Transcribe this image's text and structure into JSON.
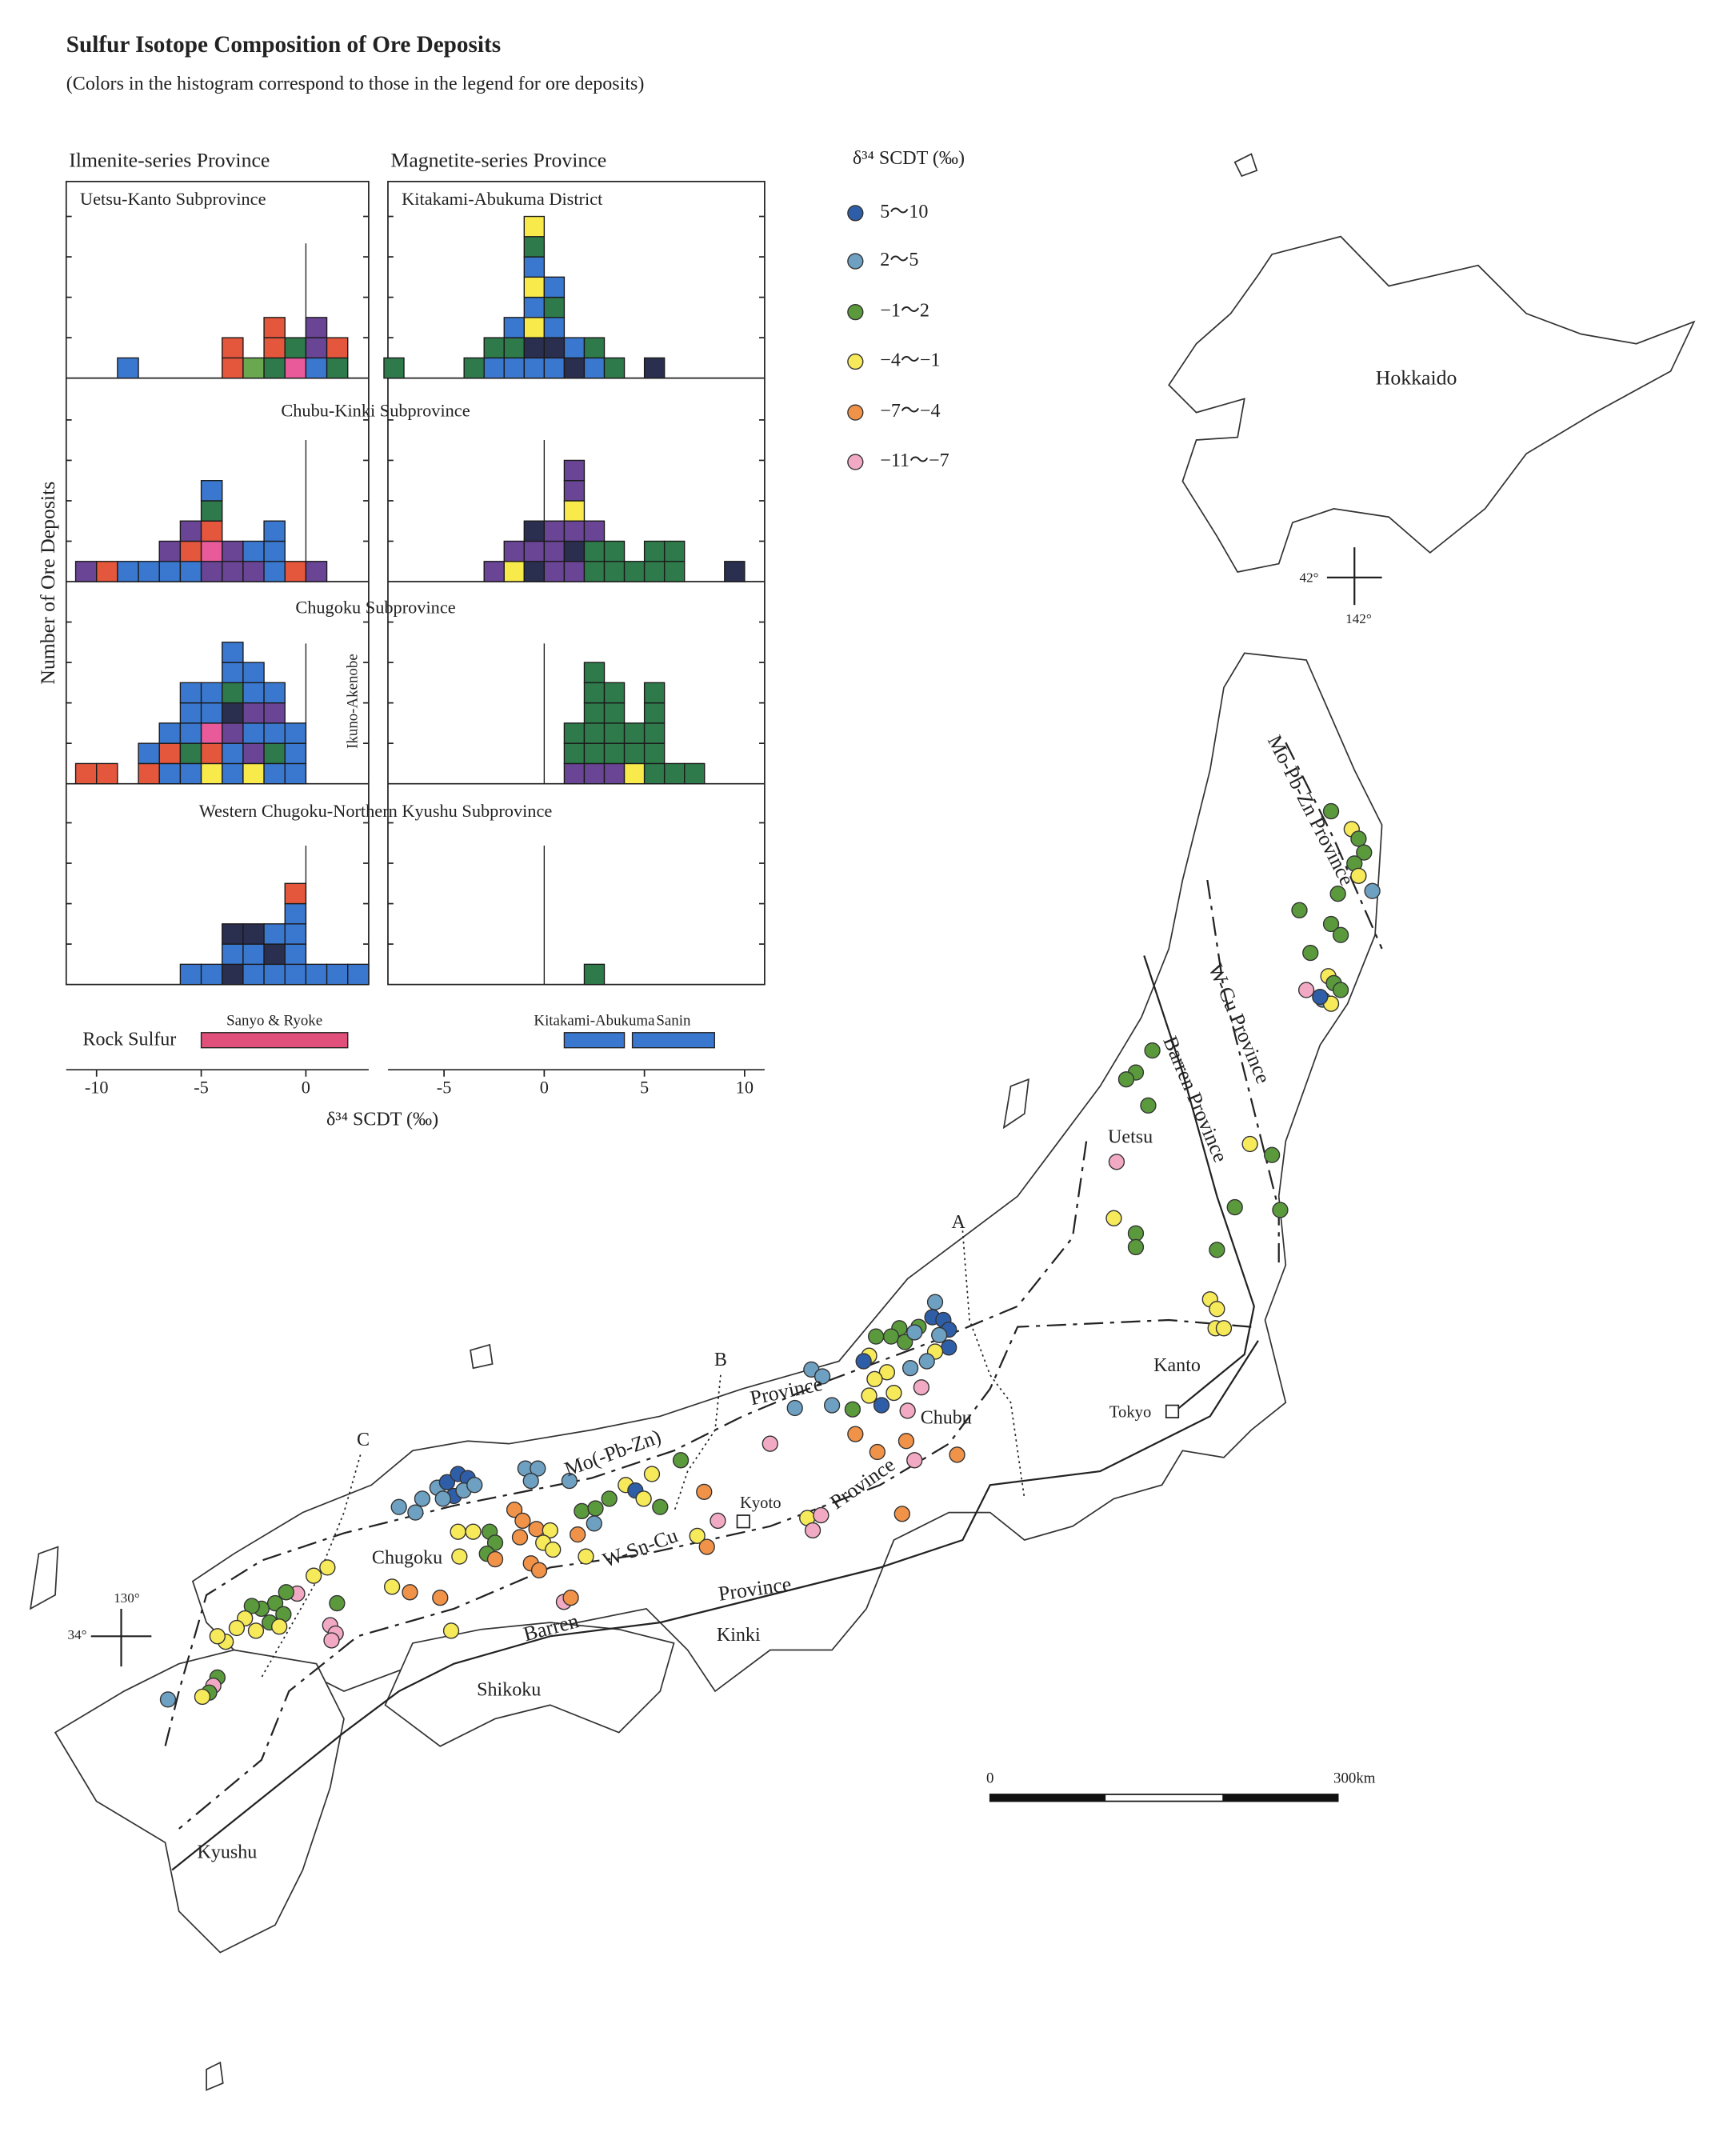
{
  "title": "Sulfur Isotope Composition of Ore Deposits",
  "subtitle": "(Colors in the histogram correspond to those in the legend for ore deposits)",
  "legend": {
    "title": "δ³⁴ SCDT (‰)",
    "items": [
      {
        "label": "5～10",
        "color": "#2f5ea8"
      },
      {
        "label": "2～5",
        "color": "#6ea0c2"
      },
      {
        "label": "−1～2",
        "color": "#5a9a3c"
      },
      {
        "label": "−4～−1",
        "color": "#f6e95a"
      },
      {
        "label": "−7～−4",
        "color": "#f09248"
      },
      {
        "label": "−11～−7",
        "color": "#f2a9c4"
      }
    ]
  },
  "histogram": {
    "type": "histogram",
    "y_axis_label": "Number of Ore Deposits",
    "x_axis_label": "δ³⁴ SCDT (‰)",
    "ylim": [
      0,
      10
    ],
    "yticks": [
      2,
      4,
      6,
      8
    ],
    "palette": {
      "red": "#e4573d",
      "green": "#2e7a4a",
      "lightgreen": "#6aa84f",
      "blue": "#3a78d0",
      "navy": "#2b2f4f",
      "purple": "#6a4495",
      "yellow": "#f7ea4a",
      "pink": "#e85a9a"
    },
    "row_titles": [
      [
        "Uetsu-Kanto Subprovince",
        "Kitakami-Abukuma District"
      ],
      [
        "Chubu-Kinki Subprovince"
      ],
      [
        "Chugoku Subprovince"
      ],
      [
        "Western Chugoku-Northern Kyushu Subprovince"
      ]
    ],
    "annotation": "Ikuno-Akenobe",
    "rock_sulfur_label": "Rock Sulfur",
    "provinces": [
      {
        "name": "Ilmenite-series Province",
        "xlim": [
          -11.45,
          3
        ],
        "xticks": [
          -10,
          -5,
          0
        ],
        "rock_sulfur": [
          {
            "name": "Sanyo & Ryoke",
            "range": [
              -5,
              2
            ],
            "color": "#e0507a"
          }
        ],
        "panels": [
          [
            {
              "bin": -9,
              "stack": [
                "blue"
              ]
            },
            {
              "bin": -4,
              "stack": [
                "red",
                "red"
              ]
            },
            {
              "bin": -3,
              "stack": [
                "lightgreen"
              ]
            },
            {
              "bin": -2,
              "stack": [
                "green",
                "red",
                "red"
              ]
            },
            {
              "bin": -1,
              "stack": [
                "pink",
                "green"
              ]
            },
            {
              "bin": 0,
              "stack": [
                "blue",
                "purple",
                "purple"
              ]
            },
            {
              "bin": 1,
              "stack": [
                "green",
                "red"
              ]
            }
          ],
          [
            {
              "bin": -11,
              "stack": [
                "purple"
              ]
            },
            {
              "bin": -10,
              "stack": [
                "red"
              ]
            },
            {
              "bin": -9,
              "stack": [
                "blue"
              ]
            },
            {
              "bin": -8,
              "stack": [
                "blue"
              ]
            },
            {
              "bin": -7,
              "stack": [
                "blue",
                "purple"
              ]
            },
            {
              "bin": -6,
              "stack": [
                "blue",
                "red",
                "purple"
              ]
            },
            {
              "bin": -5,
              "stack": [
                "purple",
                "pink",
                "red",
                "green",
                "blue"
              ]
            },
            {
              "bin": -4,
              "stack": [
                "purple",
                "purple"
              ]
            },
            {
              "bin": -3,
              "stack": [
                "purple",
                "blue"
              ]
            },
            {
              "bin": -2,
              "stack": [
                "blue",
                "blue",
                "blue"
              ]
            },
            {
              "bin": -1,
              "stack": [
                "red"
              ]
            },
            {
              "bin": 0,
              "stack": [
                "purple"
              ]
            }
          ],
          [
            {
              "bin": -11,
              "stack": [
                "red"
              ]
            },
            {
              "bin": -10,
              "stack": [
                "red"
              ]
            },
            {
              "bin": -8,
              "stack": [
                "red",
                "blue"
              ]
            },
            {
              "bin": -7,
              "stack": [
                "blue",
                "red",
                "blue"
              ]
            },
            {
              "bin": -6,
              "stack": [
                "blue",
                "green",
                "blue",
                "blue",
                "blue"
              ]
            },
            {
              "bin": -5,
              "stack": [
                "yellow",
                "red",
                "pink",
                "blue",
                "blue"
              ]
            },
            {
              "bin": -4,
              "stack": [
                "blue",
                "blue",
                "purple",
                "navy",
                "green",
                "blue",
                "blue"
              ]
            },
            {
              "bin": -3,
              "stack": [
                "yellow",
                "purple",
                "blue",
                "purple",
                "blue",
                "blue"
              ]
            },
            {
              "bin": -2,
              "stack": [
                "blue",
                "green",
                "blue",
                "purple",
                "blue"
              ]
            },
            {
              "bin": -1,
              "stack": [
                "blue",
                "blue",
                "blue"
              ]
            }
          ],
          [
            {
              "bin": -6,
              "stack": [
                "blue"
              ]
            },
            {
              "bin": -5,
              "stack": [
                "blue"
              ]
            },
            {
              "bin": -4,
              "stack": [
                "navy",
                "blue",
                "navy"
              ]
            },
            {
              "bin": -3,
              "stack": [
                "blue",
                "blue",
                "navy"
              ]
            },
            {
              "bin": -2,
              "stack": [
                "blue",
                "navy",
                "blue"
              ]
            },
            {
              "bin": -1,
              "stack": [
                "blue",
                "blue",
                "blue",
                "blue",
                "red"
              ]
            },
            {
              "bin": 0,
              "stack": [
                "blue"
              ]
            },
            {
              "bin": 1,
              "stack": [
                "blue"
              ]
            },
            {
              "bin": 2,
              "stack": [
                "blue"
              ]
            }
          ]
        ]
      },
      {
        "name": "Magnetite-series Province",
        "xlim": [
          -7.8,
          11
        ],
        "xticks": [
          -5,
          0,
          5,
          10
        ],
        "rock_sulfur": [
          {
            "name": "Kitakami-Abukuma",
            "range": [
              1,
              4
            ],
            "color": "#3a78d0"
          },
          {
            "name": "Sanin",
            "range": [
              4.4,
              8.5
            ],
            "color": "#3a78d0"
          }
        ],
        "panels": [
          [
            {
              "bin": -8,
              "stack": [
                "green"
              ]
            },
            {
              "bin": -4,
              "stack": [
                "green"
              ]
            },
            {
              "bin": -3,
              "stack": [
                "blue",
                "green"
              ]
            },
            {
              "bin": -2,
              "stack": [
                "blue",
                "green",
                "blue"
              ]
            },
            {
              "bin": -1,
              "stack": [
                "blue",
                "navy",
                "yellow",
                "blue",
                "yellow",
                "blue",
                "green",
                "yellow"
              ]
            },
            {
              "bin": 0,
              "stack": [
                "blue",
                "navy",
                "blue",
                "green",
                "blue"
              ]
            },
            {
              "bin": 1,
              "stack": [
                "navy",
                "blue"
              ]
            },
            {
              "bin": 2,
              "stack": [
                "blue",
                "green"
              ]
            },
            {
              "bin": 3,
              "stack": [
                "green"
              ]
            },
            {
              "bin": 5,
              "stack": [
                "navy"
              ]
            }
          ],
          [
            {
              "bin": -3,
              "stack": [
                "purple"
              ]
            },
            {
              "bin": -2,
              "stack": [
                "yellow",
                "purple"
              ]
            },
            {
              "bin": -1,
              "stack": [
                "navy",
                "purple",
                "navy"
              ]
            },
            {
              "bin": 0,
              "stack": [
                "purple",
                "purple",
                "purple"
              ]
            },
            {
              "bin": 1,
              "stack": [
                "purple",
                "navy",
                "purple",
                "yellow",
                "purple",
                "purple"
              ]
            },
            {
              "bin": 2,
              "stack": [
                "green",
                "green",
                "purple"
              ]
            },
            {
              "bin": 3,
              "stack": [
                "green",
                "green"
              ]
            },
            {
              "bin": 4,
              "stack": [
                "green"
              ]
            },
            {
              "bin": 5,
              "stack": [
                "green",
                "green"
              ]
            },
            {
              "bin": 6,
              "stack": [
                "green",
                "green"
              ]
            },
            {
              "bin": 9,
              "stack": [
                "navy"
              ]
            }
          ],
          [
            {
              "bin": 1,
              "stack": [
                "purple",
                "green",
                "green"
              ]
            },
            {
              "bin": 2,
              "stack": [
                "purple",
                "green",
                "green",
                "green",
                "green",
                "green"
              ]
            },
            {
              "bin": 3,
              "stack": [
                "purple",
                "green",
                "green",
                "green",
                "green"
              ]
            },
            {
              "bin": 4,
              "stack": [
                "yellow",
                "green",
                "green"
              ]
            },
            {
              "bin": 5,
              "stack": [
                "green",
                "green",
                "green",
                "green",
                "green"
              ]
            },
            {
              "bin": 6,
              "stack": [
                "green"
              ]
            },
            {
              "bin": 7,
              "stack": [
                "green"
              ]
            }
          ],
          [
            {
              "bin": 2,
              "stack": [
                "green"
              ]
            }
          ]
        ]
      }
    ]
  },
  "map": {
    "labels": [
      "Hokkaido",
      "42°",
      "142°",
      "Mo-Pb-Zn Province",
      "W-Cu Province",
      "Barren Province",
      "Uetsu",
      "Kanto",
      "Tokyo",
      "A",
      "B",
      "C",
      "Province",
      "Chubu",
      "Mo(-Pb-Zn)",
      "Kyoto",
      "Province",
      "W-Sn-Cu",
      "Chugoku",
      "Barren",
      "Province",
      "Kinki",
      "Shikoku",
      "Kyushu",
      "130°",
      "34°",
      "0",
      "300km"
    ]
  }
}
